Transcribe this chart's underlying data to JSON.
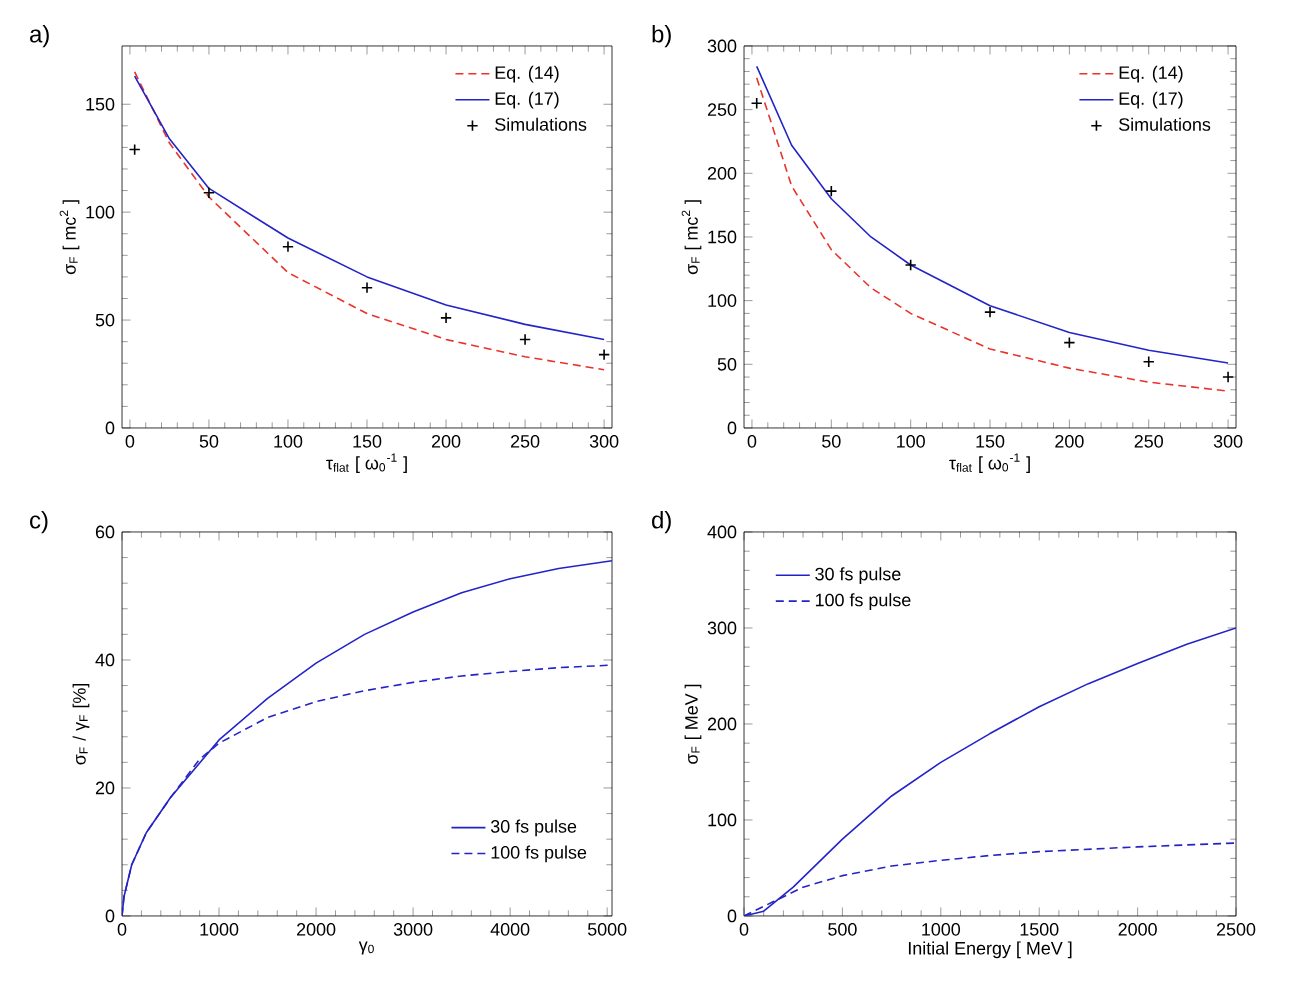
{
  "chart_data": [
    {
      "type": "line",
      "title": "a)",
      "xlabel": "τ$_{flat}$ [ ω$_{0}$$^{-1}$ ]",
      "ylabel": "σ$_{F}$ [ mc$^{2}$ ]",
      "xlim": [
        -5,
        305
      ],
      "ylim": [
        0,
        177
      ],
      "xticks": [
        0,
        50,
        100,
        150,
        200,
        250,
        300
      ],
      "yticks": [
        0,
        50,
        100,
        150
      ],
      "legend": "top right",
      "grid": false,
      "series": [
        {
          "name": "Eq. (14)",
          "color": "#e8332a",
          "line_style": "dashed",
          "marker": "none",
          "x": [
            3,
            25,
            50,
            100,
            150,
            200,
            250,
            300
          ],
          "values": [
            165,
            132,
            107,
            72,
            53,
            41,
            33,
            27
          ]
        },
        {
          "name": "Eq. (17)",
          "color": "#2323c8",
          "line_style": "solid",
          "marker": "none",
          "x": [
            3,
            25,
            50,
            100,
            150,
            200,
            250,
            300
          ],
          "values": [
            163,
            134,
            111,
            88,
            70,
            57,
            48,
            41
          ]
        },
        {
          "name": "Simulations",
          "type": "scatter",
          "color": "#000000",
          "marker": "cross",
          "x": [
            3,
            50,
            100,
            150,
            200,
            250,
            300
          ],
          "values": [
            129,
            109,
            84,
            65,
            51,
            41,
            34
          ]
        }
      ]
    },
    {
      "type": "line",
      "title": "b)",
      "xlabel": "τ$_{flat}$ [ ω$_{0}$$^{-1}$ ]",
      "ylabel": "σ$_{F}$ [ mc$^{2}$ ]",
      "xlim": [
        -5,
        305
      ],
      "ylim": [
        0,
        300
      ],
      "xticks": [
        0,
        50,
        100,
        150,
        200,
        250,
        300
      ],
      "yticks": [
        0,
        50,
        100,
        150,
        200,
        250,
        300
      ],
      "legend": "top right",
      "grid": false,
      "series": [
        {
          "name": "Eq. (14)",
          "color": "#e8332a",
          "line_style": "dashed",
          "marker": "none",
          "x": [
            3,
            25,
            50,
            75,
            100,
            150,
            200,
            250,
            300
          ],
          "values": [
            275,
            190,
            140,
            110,
            90,
            62,
            47,
            36,
            29
          ]
        },
        {
          "name": "Eq. (17)",
          "color": "#2323c8",
          "line_style": "solid",
          "marker": "none",
          "x": [
            3,
            25,
            50,
            75,
            100,
            150,
            200,
            250,
            300
          ],
          "values": [
            284,
            222,
            180,
            150,
            128,
            96,
            75,
            61,
            51
          ]
        },
        {
          "name": "Simulations",
          "type": "scatter",
          "color": "#000000",
          "marker": "cross",
          "x": [
            3,
            50,
            100,
            150,
            200,
            250,
            300
          ],
          "values": [
            255,
            186,
            128,
            91,
            67,
            52,
            40
          ]
        }
      ]
    },
    {
      "type": "line",
      "title": "c)",
      "xlabel": "γ$_{0}$",
      "ylabel": "σ$_{F}$ / γ$_{F}$ [%]",
      "xlim": [
        0,
        5050
      ],
      "ylim": [
        0,
        60
      ],
      "xticks": [
        0,
        1000,
        2000,
        3000,
        4000,
        5000
      ],
      "yticks": [
        0,
        20,
        40,
        60
      ],
      "legend": "bottom right",
      "grid": false,
      "series": [
        {
          "name": "30 fs pulse",
          "color": "#2323c8",
          "line_style": "solid",
          "marker": "none",
          "x": [
            0,
            20,
            100,
            250,
            500,
            1000,
            1500,
            2000,
            2500,
            3000,
            3500,
            4000,
            4500,
            5050
          ],
          "values": [
            0,
            3,
            8,
            13,
            18.5,
            27.5,
            34,
            39.5,
            44,
            47.5,
            50.5,
            52.7,
            54.3,
            55.5
          ]
        },
        {
          "name": "100 fs pulse",
          "color": "#2323c8",
          "line_style": "dashed",
          "marker": "none",
          "x": [
            0,
            20,
            100,
            250,
            500,
            800,
            1000,
            1500,
            2000,
            2500,
            3000,
            3500,
            4000,
            4500,
            5050
          ],
          "values": [
            0,
            3,
            8,
            13,
            18.5,
            24.5,
            27,
            31,
            33.5,
            35.2,
            36.5,
            37.5,
            38.2,
            38.8,
            39.2
          ]
        }
      ]
    },
    {
      "type": "line",
      "title": "d)",
      "xlabel": "Initial Energy [ MeV ]",
      "ylabel": "σ$_{F}$ [ MeV ]",
      "xlim": [
        0,
        2500
      ],
      "ylim": [
        0,
        400
      ],
      "xticks": [
        0,
        500,
        1000,
        1500,
        2000,
        2500
      ],
      "yticks": [
        0,
        100,
        200,
        300,
        400
      ],
      "legend": "top left",
      "grid": false,
      "series": [
        {
          "name": "30 fs pulse",
          "color": "#2323c8",
          "line_style": "solid",
          "marker": "none",
          "x": [
            0,
            100,
            250,
            500,
            750,
            1000,
            1250,
            1500,
            1750,
            2000,
            2250,
            2500
          ],
          "values": [
            0,
            5,
            30,
            80,
            125,
            160,
            190,
            218,
            242,
            263,
            283,
            300
          ]
        },
        {
          "name": "100 fs pulse",
          "color": "#2323c8",
          "line_style": "dashed",
          "marker": "none",
          "x": [
            0,
            150,
            300,
            500,
            750,
            1000,
            1250,
            1500,
            2000,
            2500
          ],
          "values": [
            0,
            15,
            30,
            42,
            52,
            58,
            63,
            67,
            72,
            76
          ]
        }
      ]
    }
  ]
}
